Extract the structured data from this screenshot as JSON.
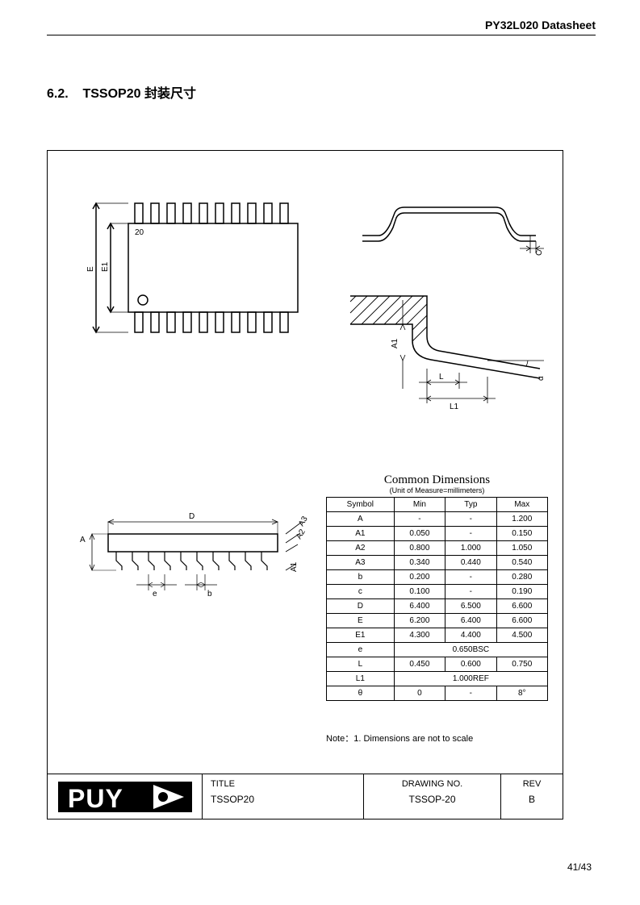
{
  "header": {
    "doc_title": "PY32L020 Datasheet"
  },
  "section": {
    "number": "6.2.",
    "title": "TSSOP20 封装尺寸"
  },
  "page_number": "41/43",
  "diagrams": {
    "top_view": {
      "pin1_label": "20",
      "dim_E": "E",
      "dim_E1": "E1"
    },
    "lead_side": {
      "dim_C": "C"
    },
    "lead_detail": {
      "dim_A1": "A1",
      "dim_L": "L",
      "dim_L1": "L1",
      "dim_alpha": "α"
    },
    "side_view": {
      "dim_A": "A",
      "dim_D": "D",
      "dim_A3": "A3",
      "dim_A2": "A2",
      "dim_A1": "A1",
      "dim_e": "e",
      "dim_b": "b"
    }
  },
  "table": {
    "title": "Common Dimensions",
    "subtitle": "(Unit of Measure=millimeters)",
    "columns": [
      "Symbol",
      "Min",
      "Typ",
      "Max"
    ],
    "rows": [
      [
        "A",
        "-",
        "-",
        "1.200"
      ],
      [
        "A1",
        "0.050",
        "-",
        "0.150"
      ],
      [
        "A2",
        "0.800",
        "1.000",
        "1.050"
      ],
      [
        "A3",
        "0.340",
        "0.440",
        "0.540"
      ],
      [
        "b",
        "0.200",
        "-",
        "0.280"
      ],
      [
        "c",
        "0.100",
        "-",
        "0.190"
      ],
      [
        "D",
        "6.400",
        "6.500",
        "6.600"
      ],
      [
        "E",
        "6.200",
        "6.400",
        "6.600"
      ],
      [
        "E1",
        "4.300",
        "4.400",
        "4.500"
      ],
      [
        "e",
        {
          "span": 3,
          "text": "0.650BSC"
        }
      ],
      [
        "L",
        "0.450",
        "0.600",
        "0.750"
      ],
      [
        "L1",
        {
          "span": 3,
          "text": "1.000REF"
        }
      ],
      [
        "θ",
        "0",
        "-",
        "8°"
      ]
    ]
  },
  "note": "Note：1. Dimensions are not to scale",
  "titleblock": {
    "logo_text": "PUYA",
    "title_label": "TITLE",
    "title_value": "TSSOP20",
    "drawing_label": "DRAWING NO.",
    "drawing_value": "TSSOP-20",
    "rev_label": "REV",
    "rev_value": "B"
  },
  "colors": {
    "line": "#000000",
    "bg": "#ffffff"
  }
}
